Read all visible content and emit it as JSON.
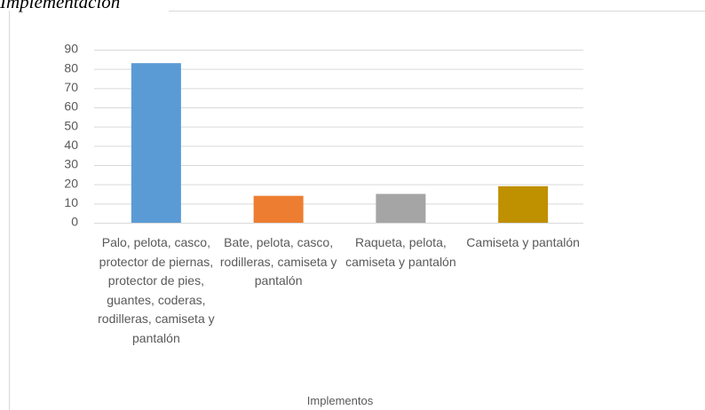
{
  "chart_data": {
    "type": "bar",
    "title": "Implementación",
    "x_label": "Implementos",
    "categories": [
      "Palo, pelota, casco, protector de piernas, protector de pies, guantes, coderas, rodilleras, camiseta y pantalón",
      "Bate, pelota, casco, rodilleras, camiseta y pantalón",
      "Raqueta, pelota, camiseta y pantalón",
      "Camiseta y pantalón"
    ],
    "values": [
      83,
      14,
      15,
      19
    ],
    "colors": [
      "#5b9bd5",
      "#ed7d31",
      "#a5a5a5",
      "#bf9000"
    ],
    "ylim": [
      0,
      90
    ],
    "yticks": [
      0,
      10,
      20,
      30,
      40,
      50,
      60,
      70,
      80,
      90
    ],
    "grid": true
  }
}
